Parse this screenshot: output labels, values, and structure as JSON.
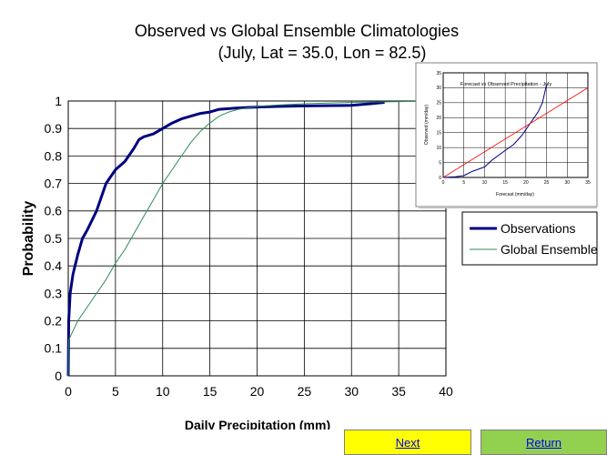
{
  "chart_data": [
    {
      "type": "line",
      "title": "Observed vs Global Ensemble Climatologies",
      "subtitle": "(July, Lat = 35.0, Lon = 82.5)",
      "xlabel": "Daily Precipitation (mm)",
      "ylabel": "Probability",
      "xlim": [
        0,
        40
      ],
      "ylim": [
        0,
        1
      ],
      "xticks": [
        "0",
        "5",
        "10",
        "15",
        "20",
        "25",
        "30",
        "35",
        "40"
      ],
      "yticks": [
        "0",
        "0.1",
        "0.2",
        "0.3",
        "0.4",
        "0.5",
        "0.6",
        "0.7",
        "0.8",
        "0.9",
        "1"
      ],
      "grid": true,
      "legend_position": "right",
      "series": [
        {
          "name": "Observations",
          "color": "#000080",
          "x": [
            0,
            0.05,
            0.2,
            0.5,
            1,
            1.5,
            2,
            3,
            4,
            5,
            6,
            7,
            7.5,
            8,
            9,
            10,
            11,
            12,
            13,
            14,
            15,
            16,
            18,
            20,
            22,
            25,
            30,
            32,
            33.5
          ],
          "y": [
            0,
            0.2,
            0.3,
            0.37,
            0.44,
            0.5,
            0.53,
            0.6,
            0.7,
            0.75,
            0.78,
            0.83,
            0.86,
            0.87,
            0.88,
            0.9,
            0.92,
            0.935,
            0.945,
            0.955,
            0.96,
            0.97,
            0.975,
            0.978,
            0.98,
            0.982,
            0.984,
            0.99,
            0.995
          ]
        },
        {
          "name": "Global Ensemble",
          "color": "#2e8b57",
          "x": [
            0,
            0.05,
            1,
            2,
            3,
            4,
            5,
            6,
            7,
            8,
            9,
            10,
            11,
            12,
            13,
            14,
            15,
            16,
            17,
            18,
            19,
            20,
            22,
            25,
            30,
            35,
            40
          ],
          "y": [
            0,
            0.13,
            0.2,
            0.25,
            0.3,
            0.35,
            0.41,
            0.46,
            0.52,
            0.58,
            0.64,
            0.7,
            0.75,
            0.8,
            0.85,
            0.89,
            0.92,
            0.945,
            0.96,
            0.97,
            0.975,
            0.98,
            0.985,
            0.99,
            0.995,
            0.998,
            1.0
          ]
        }
      ]
    },
    {
      "type": "line",
      "title": "Forecast vs Observed Precipitation - July",
      "xlabel": "Forecast (mm/day)",
      "ylabel": "Observed (mm/day)",
      "xlim": [
        0,
        35
      ],
      "ylim": [
        0,
        35
      ],
      "xticks": [
        "0",
        "5",
        "10",
        "15",
        "20",
        "25",
        "30",
        "35"
      ],
      "yticks": [
        "0",
        "5",
        "10",
        "15",
        "20",
        "25",
        "30",
        "35"
      ],
      "grid": true,
      "series": [
        {
          "color": "#000080",
          "x": [
            0,
            3,
            5,
            7,
            10,
            12,
            15,
            17,
            19,
            21,
            23,
            24,
            25
          ],
          "y": [
            0,
            0.2,
            0.6,
            2,
            3.5,
            6,
            9,
            11,
            14,
            18,
            22,
            25,
            31
          ]
        },
        {
          "color": "#ff0000",
          "x": [
            0,
            35
          ],
          "y": [
            0,
            30
          ]
        }
      ]
    }
  ],
  "nav": {
    "next_label": "Next",
    "return_label": "Return"
  }
}
